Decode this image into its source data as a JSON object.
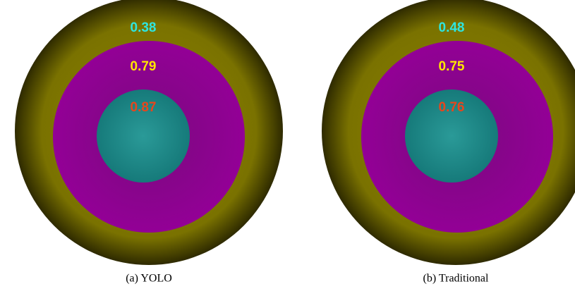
{
  "panels": [
    {
      "caption": "(a) YOLO",
      "scores": [
        0.38,
        0.79,
        0.87
      ]
    },
    {
      "caption": "(b) Traditional",
      "scores": [
        0.48,
        0.75,
        0.76
      ]
    }
  ]
}
